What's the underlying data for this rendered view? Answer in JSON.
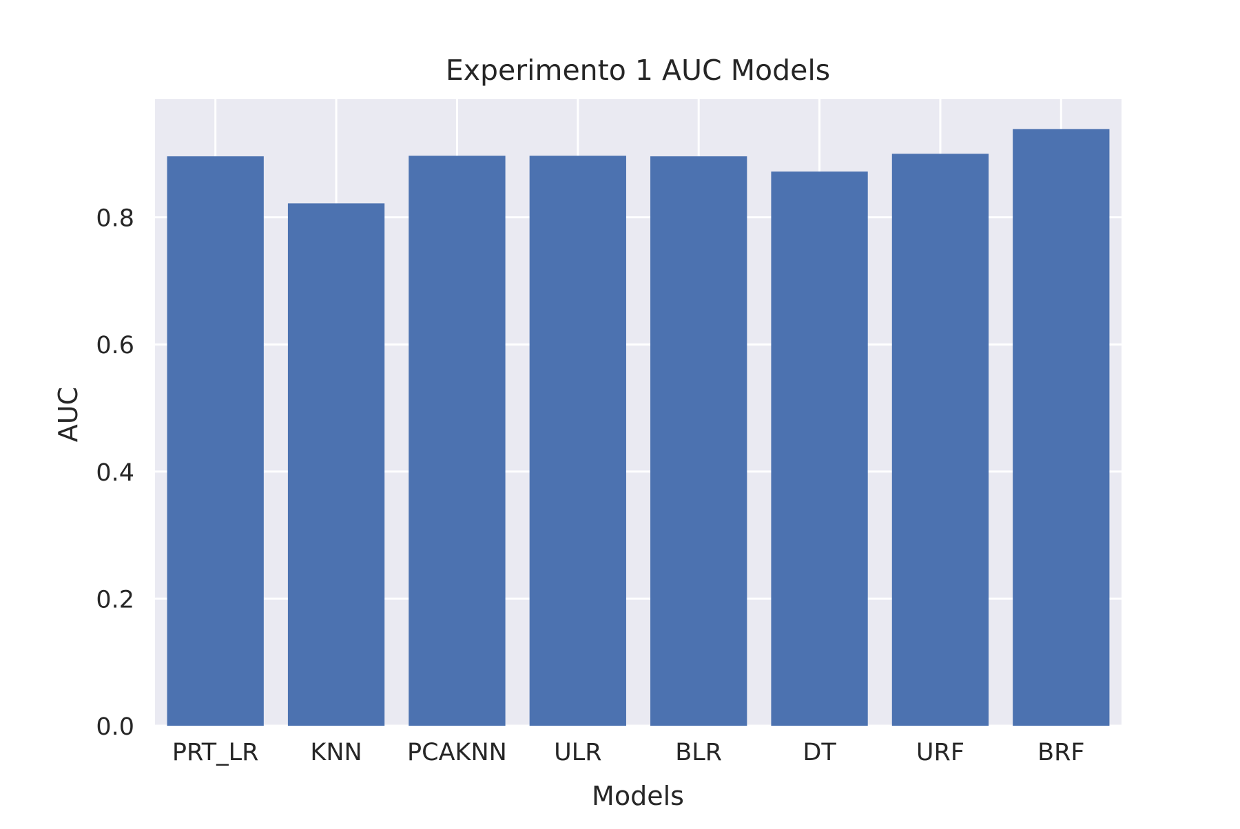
{
  "chart_data": {
    "type": "bar",
    "title": "Experimento 1 AUC Models",
    "xlabel": "Models",
    "ylabel": "AUC",
    "categories": [
      "PRT_LR",
      "KNN",
      "PCAKNN",
      "ULR",
      "BLR",
      "DT",
      "URF",
      "BRF"
    ],
    "values": [
      0.896,
      0.822,
      0.897,
      0.897,
      0.896,
      0.872,
      0.9,
      0.939
    ],
    "ylim": [
      0,
      0.986
    ],
    "yticks": [
      0.0,
      0.2,
      0.4,
      0.6,
      0.8
    ],
    "ytick_labels": [
      "0.0",
      "0.2",
      "0.4",
      "0.6",
      "0.8"
    ],
    "grid": true,
    "style": "seaborn-darkgrid",
    "colors": {
      "bar": "#4c72b0",
      "plot_background": "#eaeaf2",
      "grid": "#ffffff",
      "text": "#262626"
    }
  }
}
